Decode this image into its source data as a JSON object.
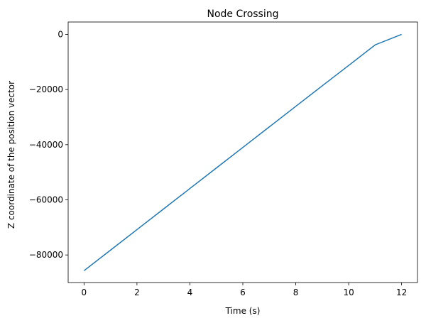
{
  "chart_data": {
    "type": "line",
    "title": "Node Crossing",
    "x_label": "Time (s)",
    "y_label": "Z coordinate of the position vector",
    "x": [
      0,
      1,
      2,
      3,
      4,
      5,
      6,
      7,
      8,
      9,
      10,
      11,
      12
    ],
    "series": [
      {
        "name": "Z",
        "color": "#1f77b4",
        "values": [
          -85700,
          -78250,
          -70800,
          -63350,
          -55900,
          -48450,
          -41000,
          -33550,
          -26100,
          -18650,
          -11250,
          -3800,
          0
        ]
      }
    ],
    "xlim": [
      -0.6,
      12.6
    ],
    "ylim": [
      -90000,
      4500
    ],
    "xticks": [
      0,
      2,
      4,
      6,
      8,
      10,
      12
    ],
    "yticks": [
      {
        "value": -80000,
        "label": "−80000"
      },
      {
        "value": -60000,
        "label": "−60000"
      },
      {
        "value": -40000,
        "label": "−40000"
      },
      {
        "value": -20000,
        "label": "−20000"
      },
      0
    ],
    "grid": false
  }
}
